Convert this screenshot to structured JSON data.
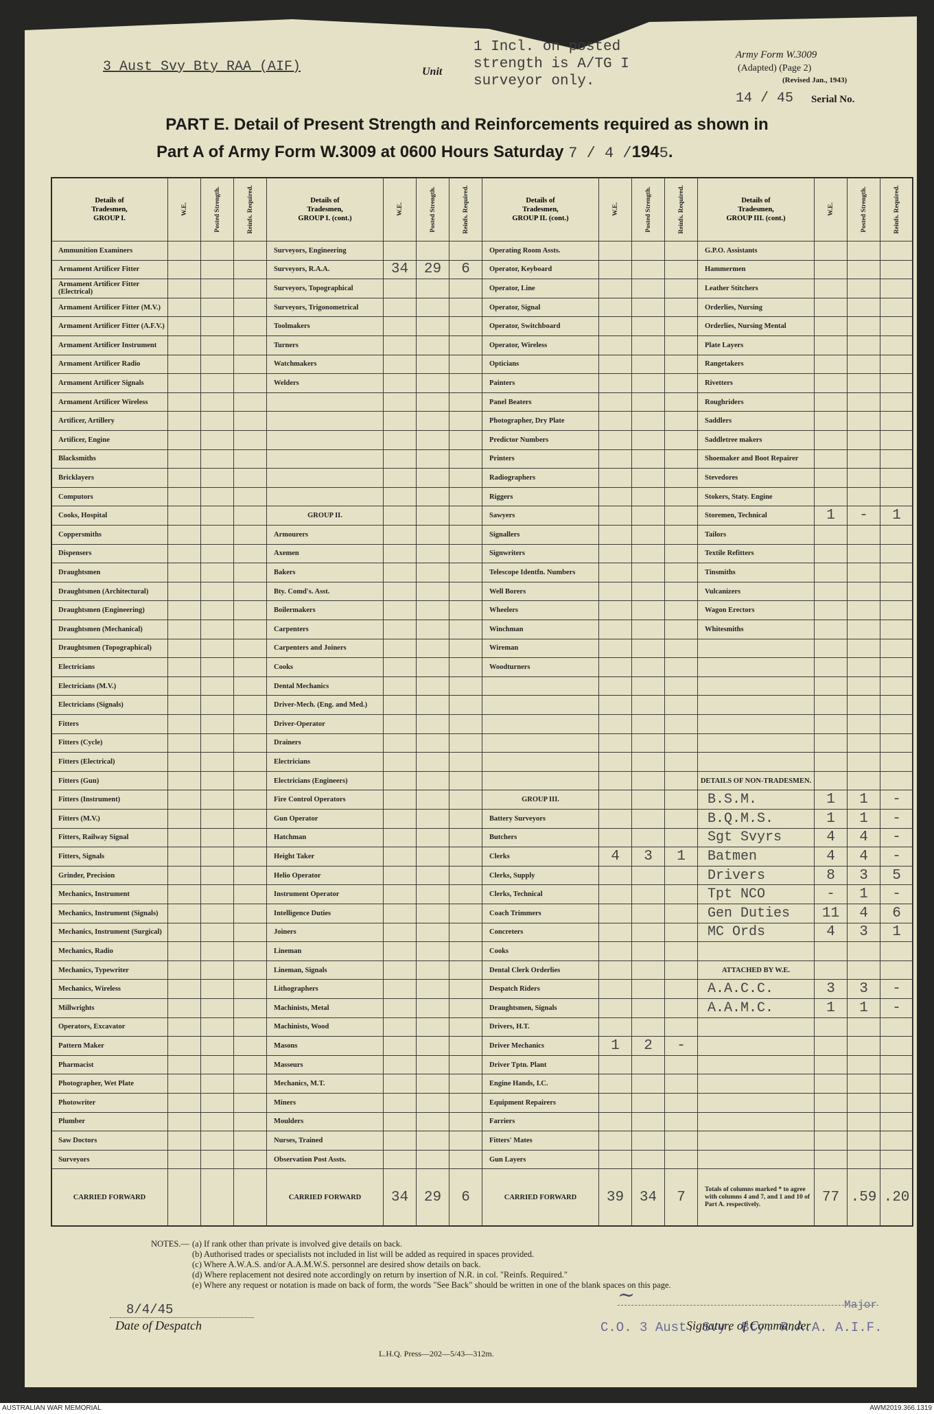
{
  "header": {
    "unit": "3 Aust Svy Bty RAA (AIF)",
    "unit_label": "Unit",
    "note": "1 Incl. on posted strength is A/TG I surveyor only.",
    "form": "Army Form W.3009",
    "adapted": "(Adapted) (Page 2)",
    "revised": "(Revised Jan., 1943)",
    "serial": "14 / 45",
    "serial_label": "Serial No.",
    "title_line1": "PART E. Detail of Present Strength and Reinforcements required as shown in",
    "title_line2": "Part A of Army Form W.3009 at 0600 Hours Saturday",
    "date_day_month": "7 / 4 /",
    "year_printed": "194",
    "year_typed": "5",
    "title_end": "."
  },
  "table": {
    "details_label": "Details of Tradesmen,",
    "col_headers": [
      "W.E.",
      "Posted Strength.",
      "Reinfs. Required."
    ],
    "columns": [
      {
        "title": "GROUP I.",
        "rows": [
          "Ammunition Examiners",
          "Armament Artificer Fitter",
          "Armament Artificer Fitter (Electrical)",
          "Armament Artificer Fitter (M.V.)",
          "Armament Artificer Fitter (A.F.V.)",
          "Armament Artificer Instrument",
          "Armament Artificer Radio",
          "Armament Artificer Signals",
          "Armament Artificer Wireless",
          "Artificer, Artillery",
          "Artificer, Engine",
          "Blacksmiths",
          "Bricklayers",
          "Computors",
          "Cooks, Hospital",
          "Coppersmiths",
          "Dispensers",
          "Draughtsmen",
          "Draughtsmen (Architectural)",
          "Draughtsmen (Engineering)",
          "Draughtsmen (Mechanical)",
          "Draughtsmen (Topographical)",
          "Electricians",
          "Electricians (M.V.)",
          "Electricians (Signals)",
          "Fitters",
          "Fitters (Cycle)",
          "Fitters (Electrical)",
          "Fitters (Gun)",
          "Fitters (Instrument)",
          "Fitters (M.V.)",
          "Fitters, Railway Signal",
          "Fitters, Signals",
          "Grinder, Precision",
          "Mechanics, Instrument",
          "Mechanics, Instrument (Signals)",
          "Mechanics, Instrument (Surgical)",
          "Mechanics, Radio",
          "Mechanics, Typewriter",
          "Mechanics, Wireless",
          "Millwrights",
          "Operators, Excavator",
          "Pattern Maker",
          "Pharmacist",
          "Photographer, Wet Plate",
          "Photowriter",
          "Plumber",
          "Saw Doctors",
          "Surveyors"
        ],
        "carried": {
          "label": "CARRIED FORWARD"
        }
      },
      {
        "title": "GROUP I. (cont.)",
        "rows": [
          "Surveyors, Engineering",
          {
            "label": "Surveyors, R.A.A.",
            "values": [
              34,
              29,
              6
            ]
          },
          "Surveyors, Topographical",
          "Surveyors, Trigonometrical",
          "Toolmakers",
          "Turners",
          "Watchmakers",
          "Welders",
          null,
          null,
          null,
          null,
          null,
          null,
          {
            "heading": "GROUP II."
          },
          "Armourers",
          "Axemen",
          "Bakers",
          "Bty. Comd's. Asst.",
          "Boilermakers",
          "Carpenters",
          "Carpenters and Joiners",
          "Cooks",
          "Dental Mechanics",
          "Driver-Mech. (Eng. and Med.)",
          "Driver-Operator",
          "Drainers",
          "Electricians",
          "Electricians (Engineers)",
          "Fire Control Operators",
          "Gun Operator",
          "Hatchman",
          "Height Taker",
          "Helio Operator",
          "Instrument Operator",
          "Intelligence Duties",
          "Joiners",
          "Lineman",
          "Lineman, Signals",
          "Lithographers",
          "Machinists, Metal",
          "Machinists, Wood",
          "Masons",
          "Masseurs",
          "Mechanics, M.T.",
          "Miners",
          "Moulders",
          "Nurses, Trained",
          "Observation Post Assts."
        ],
        "carried": {
          "label": "CARRIED FORWARD",
          "values": [
            34,
            29,
            6
          ]
        }
      },
      {
        "title": "GROUP II. (cont.)",
        "rows": [
          "Operating Room Assts.",
          "Operator, Keyboard",
          "Operator, Line",
          "Operator, Signal",
          "Operator, Switchboard",
          "Operator, Wireless",
          "Opticians",
          "Painters",
          "Panel Beaters",
          "Photographer, Dry Plate",
          "Predictor Numbers",
          "Printers",
          "Radiographers",
          "Riggers",
          "Sawyers",
          "Signallers",
          "Signwriters",
          "Telescope Identfn. Numbers",
          "Well Borers",
          "Wheelers",
          "Winchman",
          "Wireman",
          "Woodturners",
          null,
          null,
          null,
          null,
          null,
          null,
          {
            "heading": "GROUP III."
          },
          "Battery Surveyors",
          "Butchers",
          {
            "label": "Clerks",
            "values": [
              4,
              3,
              1
            ]
          },
          "Clerks, Supply",
          "Clerks, Technical",
          "Coach Trimmers",
          "Concreters",
          "Cooks",
          "Dental Clerk Orderlies",
          "Despatch Riders",
          "Draughtsmen, Signals",
          "Drivers, H.T.",
          {
            "label": "Driver Mechanics",
            "values": [
              1,
              2,
              "-"
            ]
          },
          "Driver Tptn. Plant",
          "Engine Hands, I.C.",
          "Equipment Repairers",
          "Farriers",
          "Fitters' Mates",
          "Gun Layers"
        ],
        "carried": {
          "label": "CARRIED FORWARD",
          "values": [
            39,
            34,
            7
          ]
        }
      },
      {
        "title": "GROUP III. (cont.)",
        "rows": [
          "G.P.O. Assistants",
          "Hammermen",
          "Leather Stitchers",
          "Orderlies, Nursing",
          "Orderlies, Nursing Mental",
          "Plate Layers",
          "Rangetakers",
          "Rivetters",
          "Roughriders",
          "Saddlers",
          "Saddletree makers",
          "Shoemaker and Boot Repairer",
          "Stevedores",
          "Stokers, Staty. Engine",
          {
            "label": "Storemen, Technical",
            "values": [
              1,
              "-",
              1
            ]
          },
          "Tailors",
          "Textile Refitters",
          "Tinsmiths",
          "Vulcanizers",
          "Wagon Erectors",
          "Whitesmiths",
          null,
          null,
          null,
          null,
          null,
          null,
          null,
          {
            "heading": "DETAILS OF NON-TRADESMEN."
          },
          {
            "label": "B.S.M.",
            "values": [
              1,
              1,
              "-"
            ]
          },
          {
            "label": "B.Q.M.S.",
            "values": [
              1,
              1,
              "-"
            ]
          },
          {
            "label": "Sgt Svyrs",
            "values": [
              4,
              4,
              "-"
            ]
          },
          {
            "label": "Batmen",
            "values": [
              4,
              4,
              "-"
            ]
          },
          {
            "label": "Drivers",
            "values": [
              8,
              3,
              5
            ]
          },
          {
            "label": "Tpt NCO",
            "values": [
              "-",
              1,
              "-"
            ]
          },
          {
            "label": "Gen Duties",
            "values": [
              11,
              4,
              6
            ]
          },
          {
            "label": "MC Ords",
            "values": [
              4,
              3,
              1
            ]
          },
          null,
          {
            "heading": "ATTACHED BY W.E."
          },
          {
            "label": "A.A.C.C.",
            "values": [
              3,
              3,
              "-"
            ]
          },
          {
            "label": "A.A.M.C.",
            "values": [
              1,
              1,
              "-"
            ]
          },
          null,
          null,
          null,
          null,
          null,
          null,
          null
        ],
        "carried": {
          "label": "Totals of columns marked * to agree with columns 4 and 7, and 1 and 10 of Part A. respectively.",
          "values": [
            77,
            ".59",
            ".20"
          ]
        }
      }
    ]
  },
  "notes": {
    "label": "NOTES.—",
    "items": [
      "(a) If rank other than private is involved give details on back.",
      "(b) Authorised trades or specialists not included in list will be added as required in spaces provided.",
      "(c) Where A.W.A.S. and/or A.A.M.W.S. personnel are desired show details on back.",
      "(d) Where replacement not desired note accordingly on return by insertion of N.R. in col. \"Reinfs. Required.\"",
      "(e) Where any request or notation is made on back of form, the words \"See Back\" should be written in one of the blank spaces on this page."
    ]
  },
  "footer": {
    "despatch_date": "8/4/45",
    "despatch_label": "Date of Despatch",
    "rank": "Major",
    "stamp": "C.O. 3 Aust. Svy. Bty. R.A.A. A.I.F.",
    "commander_label": "Signature of Commander",
    "press": "L.H.Q. Press—202—5/43—312m."
  },
  "archive": {
    "institution": "AUSTRALIAN WAR MEMORIAL",
    "reference": "AWM2019.366.1319"
  }
}
